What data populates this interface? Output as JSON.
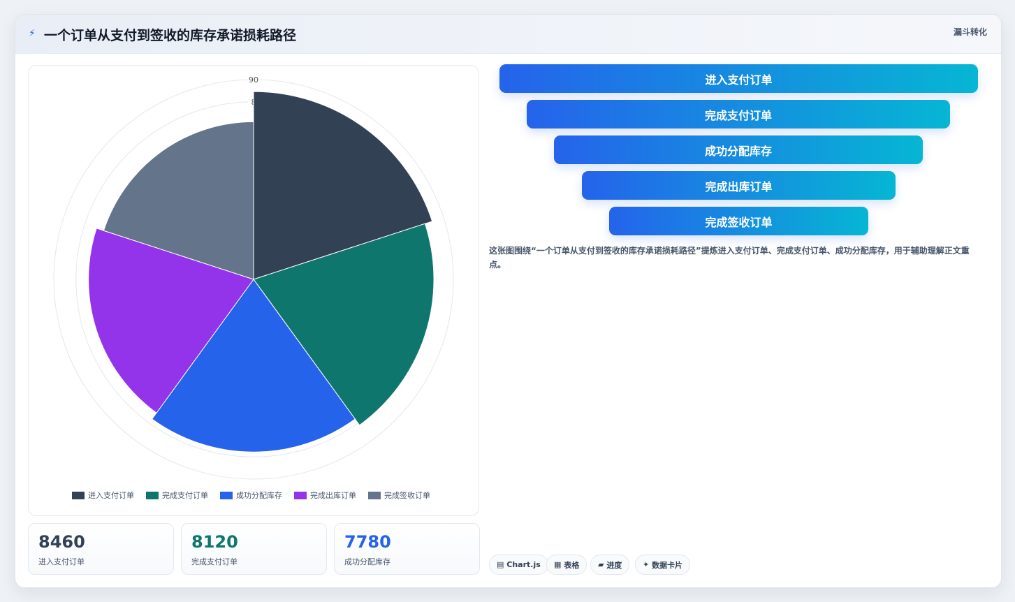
{
  "header": {
    "icon": "lightning-icon",
    "title": "一个订单从支付到签收的库存承诺损耗路径",
    "tag": "漏斗转化"
  },
  "chart_data": {
    "type": "polarArea",
    "categories": [
      "进入支付订单",
      "完成支付订单",
      "成功分配库存",
      "完成出库订单",
      "完成签收订单"
    ],
    "values": [
      8460,
      8120,
      7780,
      7440,
      7100
    ],
    "colors": [
      "#334155",
      "#0f766e",
      "#2563eb",
      "#9333ea",
      "#64748b"
    ],
    "radial_tick_labels": [
      "90",
      "8"
    ],
    "legend": "bottom",
    "grid": true
  },
  "kpis": [
    {
      "value": "8460",
      "label": "进入支付订单",
      "color": "#334155"
    },
    {
      "value": "8120",
      "label": "完成支付订单",
      "color": "#0f766e"
    },
    {
      "value": "7780",
      "label": "成功分配库存",
      "color": "#2563eb"
    }
  ],
  "funnel": [
    {
      "label": "进入支付订单"
    },
    {
      "label": "完成支付订单"
    },
    {
      "label": "成功分配库存"
    },
    {
      "label": "完成出库订单"
    },
    {
      "label": "完成签收订单"
    }
  ],
  "description": "这张图围绕“一个订单从支付到签收的库存承诺损耗路径”提炼进入支付订单、完成支付订单、成功分配库存，用于辅助理解正文重点。",
  "chips": [
    {
      "icon": "table-icon",
      "glyph": "▤",
      "label": "Chart.js"
    },
    {
      "icon": "grid-icon",
      "glyph": "▦",
      "label": "表格"
    },
    {
      "icon": "progress-icon",
      "glyph": "▰",
      "label": "进度"
    },
    {
      "icon": "sparkle-icon",
      "glyph": "✦",
      "label": "数据卡片"
    }
  ]
}
